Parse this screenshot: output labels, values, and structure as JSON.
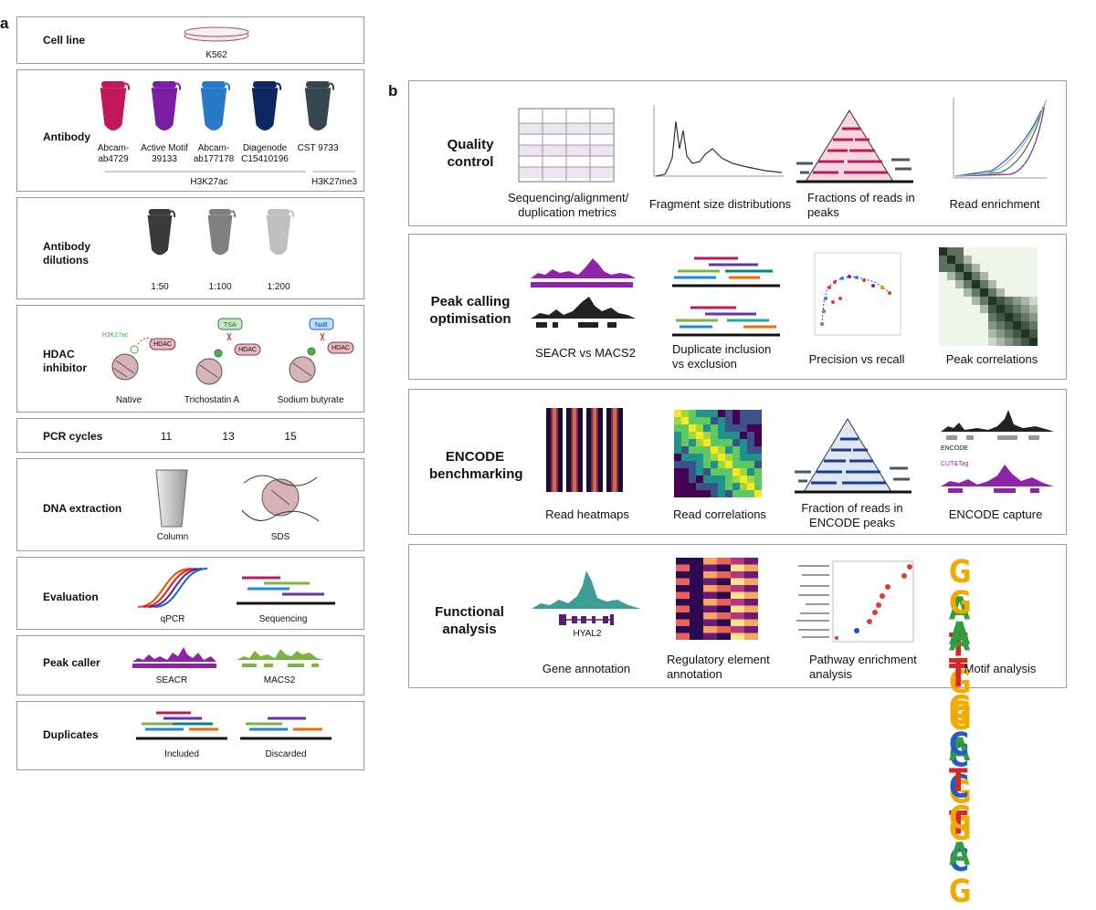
{
  "panel_a": {
    "letter": "a",
    "cell_line": {
      "label": "Cell line",
      "value": "K562"
    },
    "antibody": {
      "label": "Antibody",
      "tubes": [
        {
          "name": "Abcam-\nab4729",
          "color": "#c2185b"
        },
        {
          "name": "Active Motif\n39133",
          "color": "#7b1fa2"
        },
        {
          "name": "Abcam-\nab177178",
          "color": "#2979c9"
        },
        {
          "name": "Diagenode\nC15410196",
          "color": "#0d2660"
        },
        {
          "name": "CST 9733",
          "color": "#37474f"
        }
      ],
      "group1": "H3K27ac",
      "group2": "H3K27me3"
    },
    "dilutions": {
      "label": "Antibody\ndilutions",
      "items": [
        {
          "name": "1:50",
          "color": "#3a3a3a"
        },
        {
          "name": "1:100",
          "color": "#808080"
        },
        {
          "name": "1:200",
          "color": "#c0c0c0"
        }
      ]
    },
    "hdac": {
      "label": "HDAC\ninhibitor",
      "mark": "H3K27ac",
      "hdac_tag": "HDAC",
      "tsa_tag": "TSA",
      "nab_tag": "NaB",
      "items": [
        "Native",
        "Trichostatin A",
        "Sodium butyrate"
      ]
    },
    "pcr": {
      "label": "PCR cycles",
      "values": [
        "11",
        "13",
        "15"
      ]
    },
    "dna": {
      "label": "DNA extraction",
      "items": [
        "Column",
        "SDS"
      ]
    },
    "evaluation": {
      "label": "Evaluation",
      "items": [
        "qPCR",
        "Sequencing"
      ]
    },
    "peak_caller": {
      "label": "Peak caller",
      "items": [
        "SEACR",
        "MACS2"
      ]
    },
    "duplicates": {
      "label": "Duplicates",
      "items": [
        "Included",
        "Discarded"
      ]
    }
  },
  "panel_b": {
    "letter": "b",
    "rows": [
      {
        "title": "Quality\ncontrol",
        "captions": [
          "Sequencing/alignment/\nduplication metrics",
          "Fragment size distributions",
          "Fractions of reads in\npeaks",
          "Read enrichment"
        ]
      },
      {
        "title": "Peak calling\noptimisation",
        "captions": [
          "SEACR vs MACS2",
          "Duplicate inclusion\nvs exclusion",
          "Precision vs recall",
          "Peak correlations"
        ]
      },
      {
        "title": "ENCODE\nbenchmarking",
        "captions": [
          "Read heatmaps",
          "Read correlations",
          "Fraction of reads in\nENCODE peaks",
          "ENCODE capture"
        ]
      },
      {
        "title": "Functional\nanalysis",
        "captions": [
          "Gene annotation",
          "Regulatory element\nannotation",
          "Pathway enrichment\nanalysis",
          "Motif analysis"
        ]
      }
    ],
    "gene_name": "HYAL2",
    "encode_track": "ENCODE",
    "cuttag_track": "CUT&Tag",
    "motifs": [
      "GATGGCGG",
      "GATGACTC",
      "ATGCTGAG"
    ]
  }
}
